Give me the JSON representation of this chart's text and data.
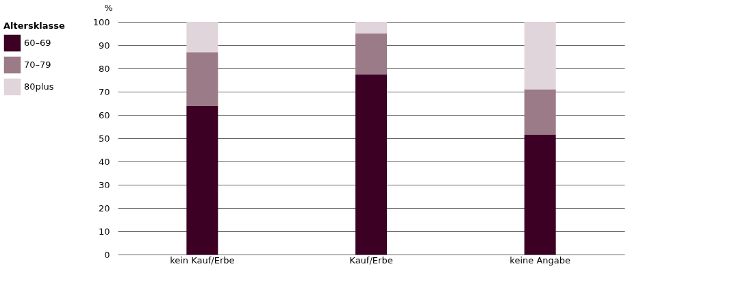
{
  "chart_data": {
    "type": "bar",
    "stacked": true,
    "ylabel": "%",
    "legend_title": "Altersklasse",
    "legend": "left",
    "categories": [
      "kein Kauf/Erbe",
      "Kauf/Erbe",
      "keine Angabe"
    ],
    "series": [
      {
        "name": "60–69",
        "color": "#3c0024",
        "values": [
          64,
          77.5,
          51.5
        ]
      },
      {
        "name": "70–79",
        "color": "#9b7b87",
        "values": [
          23,
          17.5,
          19.5
        ]
      },
      {
        "name": "80plus",
        "color": "#e0d5da",
        "values": [
          13,
          5,
          29
        ]
      }
    ],
    "ylim": [
      0,
      100
    ],
    "yticks": [
      0,
      10,
      20,
      30,
      40,
      50,
      60,
      70,
      80,
      90,
      100
    ],
    "grid": "y"
  }
}
